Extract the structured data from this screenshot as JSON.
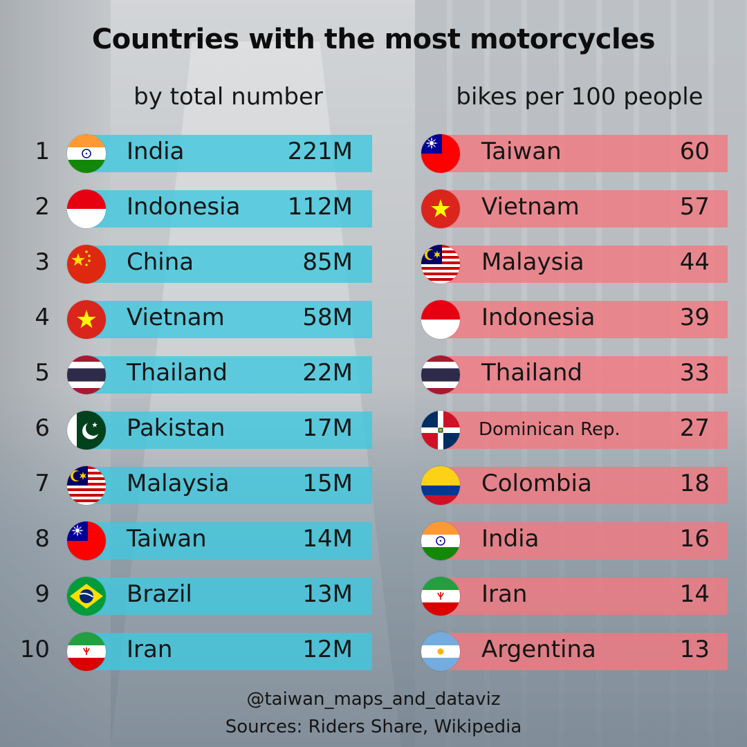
{
  "title": "Countries with the most motorcycles",
  "chart_data": [
    {
      "type": "table",
      "subtitle": "by total number",
      "rows": [
        {
          "rank": "1",
          "country": "India",
          "value_label": "221M",
          "value": 221,
          "flag": "india-flag-icon"
        },
        {
          "rank": "2",
          "country": "Indonesia",
          "value_label": "112M",
          "value": 112,
          "flag": "indonesia-flag-icon"
        },
        {
          "rank": "3",
          "country": "China",
          "value_label": "85M",
          "value": 85,
          "flag": "china-flag-icon"
        },
        {
          "rank": "4",
          "country": "Vietnam",
          "value_label": "58M",
          "value": 58,
          "flag": "vietnam-flag-icon"
        },
        {
          "rank": "5",
          "country": "Thailand",
          "value_label": "22M",
          "value": 22,
          "flag": "thailand-flag-icon"
        },
        {
          "rank": "6",
          "country": "Pakistan",
          "value_label": "17M",
          "value": 17,
          "flag": "pakistan-flag-icon"
        },
        {
          "rank": "7",
          "country": "Malaysia",
          "value_label": "15M",
          "value": 15,
          "flag": "malaysia-flag-icon"
        },
        {
          "rank": "8",
          "country": "Taiwan",
          "value_label": "14M",
          "value": 14,
          "flag": "taiwan-flag-icon"
        },
        {
          "rank": "9",
          "country": "Brazil",
          "value_label": "13M",
          "value": 13,
          "flag": "brazil-flag-icon"
        },
        {
          "rank": "10",
          "country": "Iran",
          "value_label": "12M",
          "value": 12,
          "flag": "iran-flag-icon"
        }
      ],
      "bar_color": "#40c8de"
    },
    {
      "type": "table",
      "subtitle": "bikes per 100 people",
      "rows": [
        {
          "country": "Taiwan",
          "value_label": "60",
          "value": 60,
          "flag": "taiwan-flag-icon"
        },
        {
          "country": "Vietnam",
          "value_label": "57",
          "value": 57,
          "flag": "vietnam-flag-icon"
        },
        {
          "country": "Malaysia",
          "value_label": "44",
          "value": 44,
          "flag": "malaysia-flag-icon"
        },
        {
          "country": "Indonesia",
          "value_label": "39",
          "value": 39,
          "flag": "indonesia-flag-icon"
        },
        {
          "country": "Thailand",
          "value_label": "33",
          "value": 33,
          "flag": "thailand-flag-icon"
        },
        {
          "country": "Dominican Rep.",
          "value_label": "27",
          "value": 27,
          "flag": "dominican-republic-flag-icon"
        },
        {
          "country": "Colombia",
          "value_label": "18",
          "value": 18,
          "flag": "colombia-flag-icon"
        },
        {
          "country": "India",
          "value_label": "16",
          "value": 16,
          "flag": "india-flag-icon"
        },
        {
          "country": "Iran",
          "value_label": "14",
          "value": 14,
          "flag": "iran-flag-icon"
        },
        {
          "country": "Argentina",
          "value_label": "13",
          "value": 13,
          "flag": "argentina-flag-icon"
        }
      ],
      "bar_color": "#f47880"
    }
  ],
  "footer": {
    "handle": "@taiwan_maps_and_dataviz",
    "sources": "Sources: Riders Share, Wikipedia"
  }
}
